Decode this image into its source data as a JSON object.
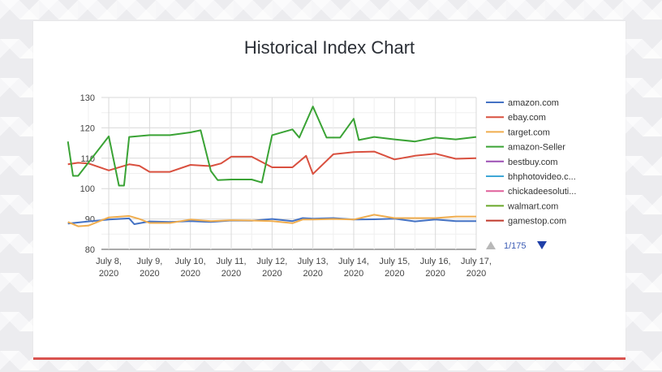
{
  "card": {
    "title": "Historical Index Chart"
  },
  "chart_data": {
    "type": "line",
    "title": "Historical Index Chart",
    "ylim": [
      80,
      130
    ],
    "yticks": [
      80,
      90,
      100,
      110,
      120,
      130
    ],
    "grid": true,
    "legend_position": "right",
    "xlabels": [
      [
        "July 8,",
        "2020"
      ],
      [
        "July 9,",
        "2020"
      ],
      [
        "July 10,",
        "2020"
      ],
      [
        "July 11,",
        "2020"
      ],
      [
        "July 12,",
        "2020"
      ],
      [
        "July 13,",
        "2020"
      ],
      [
        "July 14,",
        "2020"
      ],
      [
        "July 15,",
        "2020"
      ],
      [
        "July 16,",
        "2020"
      ],
      [
        "July 17,",
        "2020"
      ]
    ],
    "x_start": "July 7, 2020",
    "x_end": "July 17, 2020",
    "pagination": "1/175",
    "legend": [
      {
        "label": "amazon.com",
        "color": "#4472c4"
      },
      {
        "label": "ebay.com",
        "color": "#d9503f"
      },
      {
        "label": "target.com",
        "color": "#f0ad4e"
      },
      {
        "label": "amazon-Seller",
        "color": "#3aa335"
      },
      {
        "label": "bestbuy.com",
        "color": "#9c4fb4"
      },
      {
        "label": "bhphotovideo.c...",
        "color": "#3fa7d6"
      },
      {
        "label": "chickadeesoluti...",
        "color": "#e0609a"
      },
      {
        "label": "walmart.com",
        "color": "#6aa82a"
      },
      {
        "label": "gamestop.com",
        "color": "#c0392b"
      }
    ],
    "series": [
      {
        "name": "amazon.com",
        "color": "#4472c4",
        "points": [
          [
            "July 7",
            88.5
          ],
          [
            "July 7 12:00",
            89.2
          ],
          [
            "July 8",
            89.8
          ],
          [
            "July 8 12:00",
            90.2
          ],
          [
            "July 8 15:00",
            88.3
          ],
          [
            "July 9",
            89.2
          ],
          [
            "July 9 12:00",
            89.0
          ],
          [
            "July 10",
            89.3
          ],
          [
            "July 10 12:00",
            89.0
          ],
          [
            "July 11",
            89.5
          ],
          [
            "July 11 12:00",
            89.4
          ],
          [
            "July 12",
            90.0
          ],
          [
            "July 12 12:00",
            89.3
          ],
          [
            "July 12 18:00",
            90.3
          ],
          [
            "July 13",
            90.1
          ],
          [
            "July 13 12:00",
            90.3
          ],
          [
            "July 14",
            89.8
          ],
          [
            "July 14 12:00",
            89.9
          ],
          [
            "July 15",
            90.1
          ],
          [
            "July 15 12:00",
            89.2
          ],
          [
            "July 16",
            89.8
          ],
          [
            "July 16 12:00",
            89.3
          ],
          [
            "July 17",
            89.3
          ]
        ]
      },
      {
        "name": "target.com",
        "color": "#f0ad4e",
        "points": [
          [
            "July 7",
            89.0
          ],
          [
            "July 7 06:00",
            87.6
          ],
          [
            "July 7 12:00",
            87.8
          ],
          [
            "July 8",
            90.5
          ],
          [
            "July 8 12:00",
            91.0
          ],
          [
            "July 8 18:00",
            90.0
          ],
          [
            "July 9",
            88.7
          ],
          [
            "July 9 12:00",
            88.7
          ],
          [
            "July 10",
            89.8
          ],
          [
            "July 10 12:00",
            89.3
          ],
          [
            "July 11",
            89.6
          ],
          [
            "July 11 12:00",
            89.5
          ],
          [
            "July 12",
            89.3
          ],
          [
            "July 12 12:00",
            88.6
          ],
          [
            "July 12 18:00",
            89.8
          ],
          [
            "July 13",
            89.8
          ],
          [
            "July 13 12:00",
            90.0
          ],
          [
            "July 14",
            89.8
          ],
          [
            "July 14 12:00",
            91.4
          ],
          [
            "July 15",
            90.3
          ],
          [
            "July 15 12:00",
            90.3
          ],
          [
            "July 16",
            90.3
          ],
          [
            "July 16 12:00",
            90.8
          ],
          [
            "July 17",
            90.8
          ]
        ]
      },
      {
        "name": "ebay.com",
        "color": "#d9503f",
        "points": [
          [
            "July 7",
            108.0
          ],
          [
            "July 7 06:00",
            108.5
          ],
          [
            "July 7 12:00",
            108.3
          ],
          [
            "July 8",
            106.0
          ],
          [
            "July 8 12:00",
            108.0
          ],
          [
            "July 8 18:00",
            107.5
          ],
          [
            "July 9",
            105.5
          ],
          [
            "July 9 12:00",
            105.5
          ],
          [
            "July 10",
            107.8
          ],
          [
            "July 10 12:00",
            107.4
          ],
          [
            "July 10 18:00",
            108.3
          ],
          [
            "July 11",
            110.5
          ],
          [
            "July 11 12:00",
            110.5
          ],
          [
            "July 12",
            107.0
          ],
          [
            "July 12 12:00",
            107.0
          ],
          [
            "July 12 20:00",
            110.8
          ],
          [
            "July 13",
            104.8
          ],
          [
            "July 13 12:00",
            111.3
          ],
          [
            "July 14",
            112.0
          ],
          [
            "July 14 12:00",
            112.2
          ],
          [
            "July 15",
            109.6
          ],
          [
            "July 15 12:00",
            110.8
          ],
          [
            "July 16",
            111.5
          ],
          [
            "July 16 12:00",
            109.8
          ],
          [
            "July 17",
            110.0
          ]
        ]
      },
      {
        "name": "amazon-Seller",
        "color": "#3aa335",
        "points": [
          [
            "July 7",
            115.5
          ],
          [
            "July 7 03:00",
            104.2
          ],
          [
            "July 7 06:00",
            104.2
          ],
          [
            "July 8",
            117.2
          ],
          [
            "July 8 06:00",
            101.0
          ],
          [
            "July 8 09:00",
            101.0
          ],
          [
            "July 8 12:00",
            117.0
          ],
          [
            "July 9",
            117.6
          ],
          [
            "July 9 12:00",
            117.6
          ],
          [
            "July 10",
            118.5
          ],
          [
            "July 10 06:00",
            119.2
          ],
          [
            "July 10 12:00",
            105.8
          ],
          [
            "July 10 16:00",
            102.8
          ],
          [
            "July 11",
            103.0
          ],
          [
            "July 11 12:00",
            103.0
          ],
          [
            "July 11 18:00",
            102.0
          ],
          [
            "July 12",
            117.6
          ],
          [
            "July 12 12:00",
            119.5
          ],
          [
            "July 12 16:00",
            116.8
          ],
          [
            "July 13",
            127.0
          ],
          [
            "July 13 08:00",
            116.8
          ],
          [
            "July 13 16:00",
            116.8
          ],
          [
            "July 14",
            123.0
          ],
          [
            "July 14 03:00",
            116.0
          ],
          [
            "July 14 12:00",
            117.0
          ],
          [
            "July 15",
            116.2
          ],
          [
            "July 15 12:00",
            115.5
          ],
          [
            "July 16",
            116.8
          ],
          [
            "July 16 12:00",
            116.2
          ],
          [
            "July 17",
            117.0
          ]
        ]
      }
    ]
  }
}
